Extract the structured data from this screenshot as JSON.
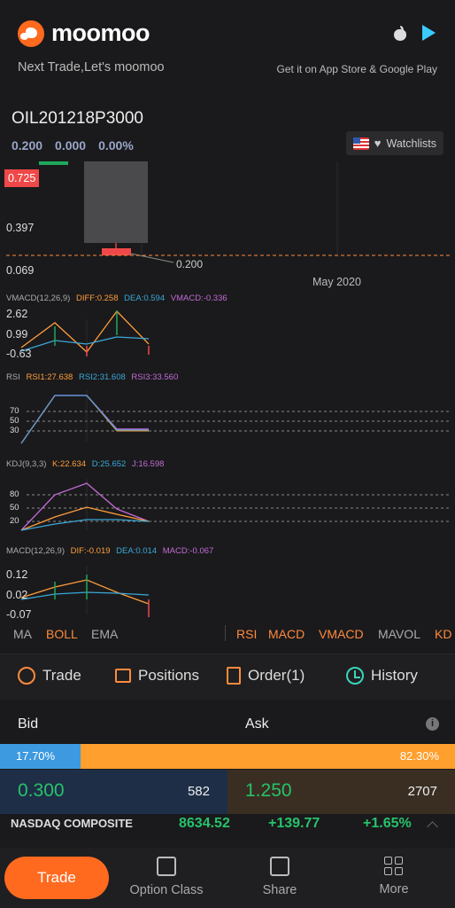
{
  "banner": {
    "brand": "moomoo",
    "tagline": "Next Trade,Let's moomoo",
    "store_text": "Get it on App Store & Google Play"
  },
  "quote": {
    "symbol": "OIL201218P3000",
    "price": "0.200",
    "change": "0.000",
    "change_pct": "0.00%",
    "watchlist_label": "Watchlists"
  },
  "chart_data": [
    {
      "type": "candlestick",
      "price_labels": [
        "0.725",
        "0.397",
        "0.069"
      ],
      "last_price_label": "0.200",
      "date_label": "May 2020"
    },
    {
      "type": "line",
      "indicator": "VMACD(12,26,9)",
      "legend": [
        "DIFF:0.258",
        "DEA:0.594",
        "VMACD:-0.336"
      ],
      "ticks": [
        "2.62",
        "0.99",
        "-0.63"
      ]
    },
    {
      "type": "line",
      "indicator": "RSI",
      "legend": [
        "RSI1:27.638",
        "RSI2:31.608",
        "RSI3:33.560"
      ],
      "ticks": [
        "70",
        "50",
        "30"
      ]
    },
    {
      "type": "line",
      "indicator": "KDJ(9,3,3)",
      "legend": [
        "K:22.634",
        "D:25.652",
        "J:16.598"
      ],
      "ticks": [
        "80",
        "50",
        "20"
      ]
    },
    {
      "type": "line",
      "indicator": "MACD(12,26,9)",
      "legend": [
        "DIF:-0.019",
        "DEA:0.014",
        "MACD:-0.067"
      ],
      "ticks": [
        "0.12",
        "0.02",
        "-0.07"
      ]
    }
  ],
  "indicator_tabs": {
    "main": [
      "MA",
      "BOLL",
      "EMA"
    ],
    "sub": [
      "RSI",
      "MACD",
      "VMACD",
      "MAVOL",
      "KD"
    ]
  },
  "actions": [
    "Trade",
    "Positions",
    "Order(1)",
    "History"
  ],
  "book": {
    "bid_label": "Bid",
    "ask_label": "Ask",
    "bid_pct": "17.70%",
    "ask_pct": "82.30%",
    "bid_price": "0.300",
    "bid_vol": "582",
    "ask_price": "1.250",
    "ask_vol": "2707"
  },
  "ticker": {
    "name": "NASDAQ COMPOSITE",
    "value": "8634.52",
    "change": "+139.77",
    "pct": "+1.65%"
  },
  "bottom": {
    "trade": "Trade",
    "tabs": [
      "Option Class",
      "Share",
      "More"
    ]
  },
  "colors": {
    "accent": "#ff6a1f",
    "green": "#27c26a",
    "red": "#f04848"
  }
}
